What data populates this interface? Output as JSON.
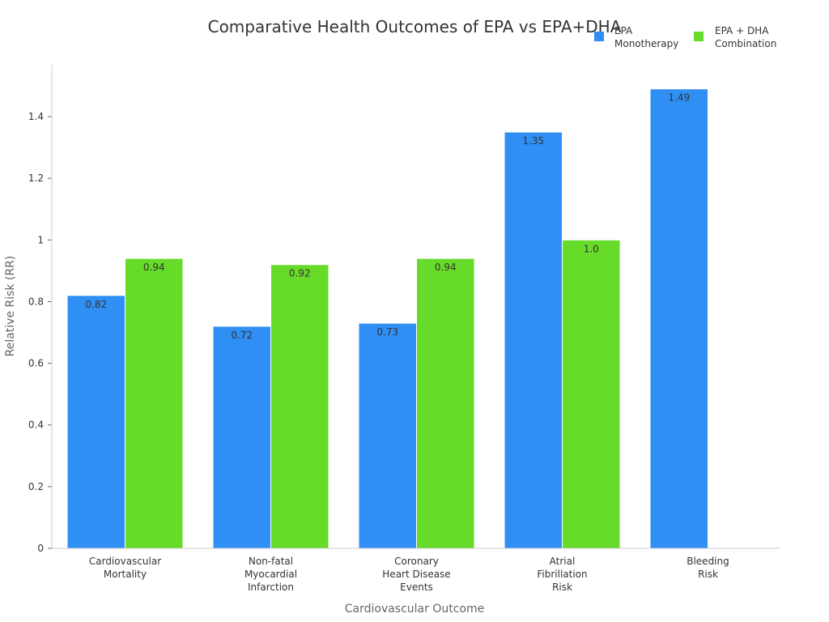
{
  "chart_data": {
    "type": "bar",
    "title": "Comparative Health Outcomes of EPA vs EPA+DHA",
    "xlabel": "Cardiovascular Outcome",
    "ylabel": "Relative Risk (RR)",
    "ylim": [
      0,
      1.55
    ],
    "yticks": [
      "0",
      "0.2",
      "0.4",
      "0.6",
      "0.8",
      "1",
      "1.2",
      "1.4"
    ],
    "grid": false,
    "legend_position": "top-right",
    "categories": [
      [
        "Cardiovascular",
        "Mortality"
      ],
      [
        "Non-fatal",
        "Myocardial",
        "Infarction"
      ],
      [
        "Coronary",
        "Heart Disease",
        "Events"
      ],
      [
        "Atrial",
        "Fibrillation",
        "Risk"
      ],
      [
        "Bleeding",
        "Risk"
      ]
    ],
    "series": [
      {
        "name": [
          "EPA",
          "Monotherapy"
        ],
        "color": "#2f8ff5",
        "values": [
          0.82,
          0.72,
          0.73,
          1.35,
          1.49
        ],
        "labels": [
          "0.82",
          "0.72",
          "0.73",
          "1.35",
          "1.49"
        ]
      },
      {
        "name": [
          "EPA + DHA",
          "Combination"
        ],
        "color": "#66db29",
        "values": [
          0.94,
          0.92,
          0.94,
          1.0,
          null
        ],
        "labels": [
          "0.94",
          "0.92",
          "0.94",
          "1.0",
          null
        ]
      }
    ]
  }
}
